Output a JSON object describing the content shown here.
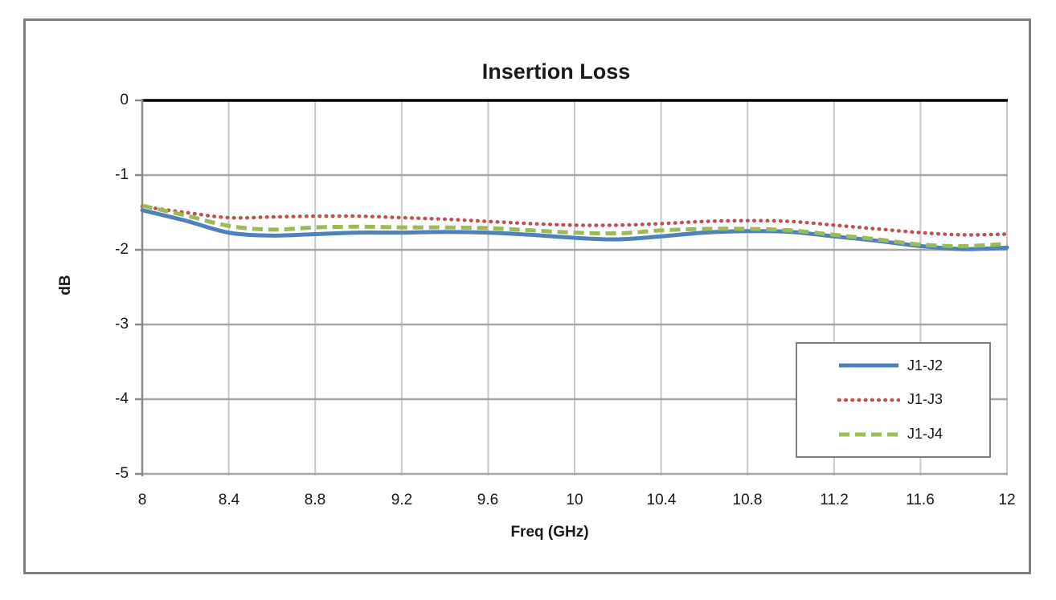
{
  "chart_data": {
    "type": "line",
    "title": "Insertion Loss",
    "xlabel": "Freq (GHz)",
    "ylabel": "dB",
    "xlim": [
      8,
      12
    ],
    "ylim": [
      -5,
      0
    ],
    "grid": true,
    "legend_position": "bottom-right",
    "x_ticks": [
      8,
      8.4,
      8.8,
      9.2,
      9.6,
      10,
      10.4,
      10.8,
      11.2,
      11.6,
      12
    ],
    "x_tick_labels": [
      "8",
      "8.4",
      "8.8",
      "9.2",
      "9.6",
      "10",
      "10.4",
      "10.8",
      "11.2",
      "11.6",
      "12"
    ],
    "y_ticks": [
      0,
      -1,
      -2,
      -3,
      -4,
      -5
    ],
    "y_tick_labels": [
      "0",
      "-1",
      "-2",
      "-3",
      "-4",
      "-5"
    ],
    "x": [
      8.0,
      8.2,
      8.4,
      8.6,
      8.8,
      9.0,
      9.2,
      9.4,
      9.6,
      9.8,
      10.0,
      10.2,
      10.4,
      10.6,
      10.8,
      11.0,
      11.2,
      11.4,
      11.6,
      11.8,
      12.0
    ],
    "series": [
      {
        "name": "J1-J2",
        "color": "#4F81BD",
        "line_style": "solid",
        "values": [
          -1.47,
          -1.61,
          -1.77,
          -1.81,
          -1.79,
          -1.77,
          -1.77,
          -1.76,
          -1.77,
          -1.8,
          -1.84,
          -1.86,
          -1.82,
          -1.77,
          -1.75,
          -1.76,
          -1.82,
          -1.88,
          -1.95,
          -1.99,
          -1.97
        ]
      },
      {
        "name": "J1-J3",
        "color": "#C0504D",
        "line_style": "dotted",
        "values": [
          -1.42,
          -1.5,
          -1.57,
          -1.56,
          -1.55,
          -1.55,
          -1.57,
          -1.59,
          -1.62,
          -1.65,
          -1.67,
          -1.67,
          -1.65,
          -1.62,
          -1.61,
          -1.62,
          -1.67,
          -1.72,
          -1.77,
          -1.8,
          -1.79
        ]
      },
      {
        "name": "J1-J4",
        "color": "#9BBB59",
        "line_style": "dashed",
        "values": [
          -1.41,
          -1.54,
          -1.68,
          -1.73,
          -1.7,
          -1.69,
          -1.7,
          -1.7,
          -1.71,
          -1.74,
          -1.77,
          -1.78,
          -1.74,
          -1.72,
          -1.72,
          -1.74,
          -1.8,
          -1.86,
          -1.93,
          -1.95,
          -1.92
        ]
      }
    ],
    "colors": {
      "axis": "#898989",
      "gridline_horizontal": "#A6A6A6",
      "gridline_vertical": "#C8C8C8",
      "zero_line": "#000000",
      "chart_border": "#808080",
      "text": "#1A1A1A",
      "background": "#FFFFFF"
    }
  }
}
